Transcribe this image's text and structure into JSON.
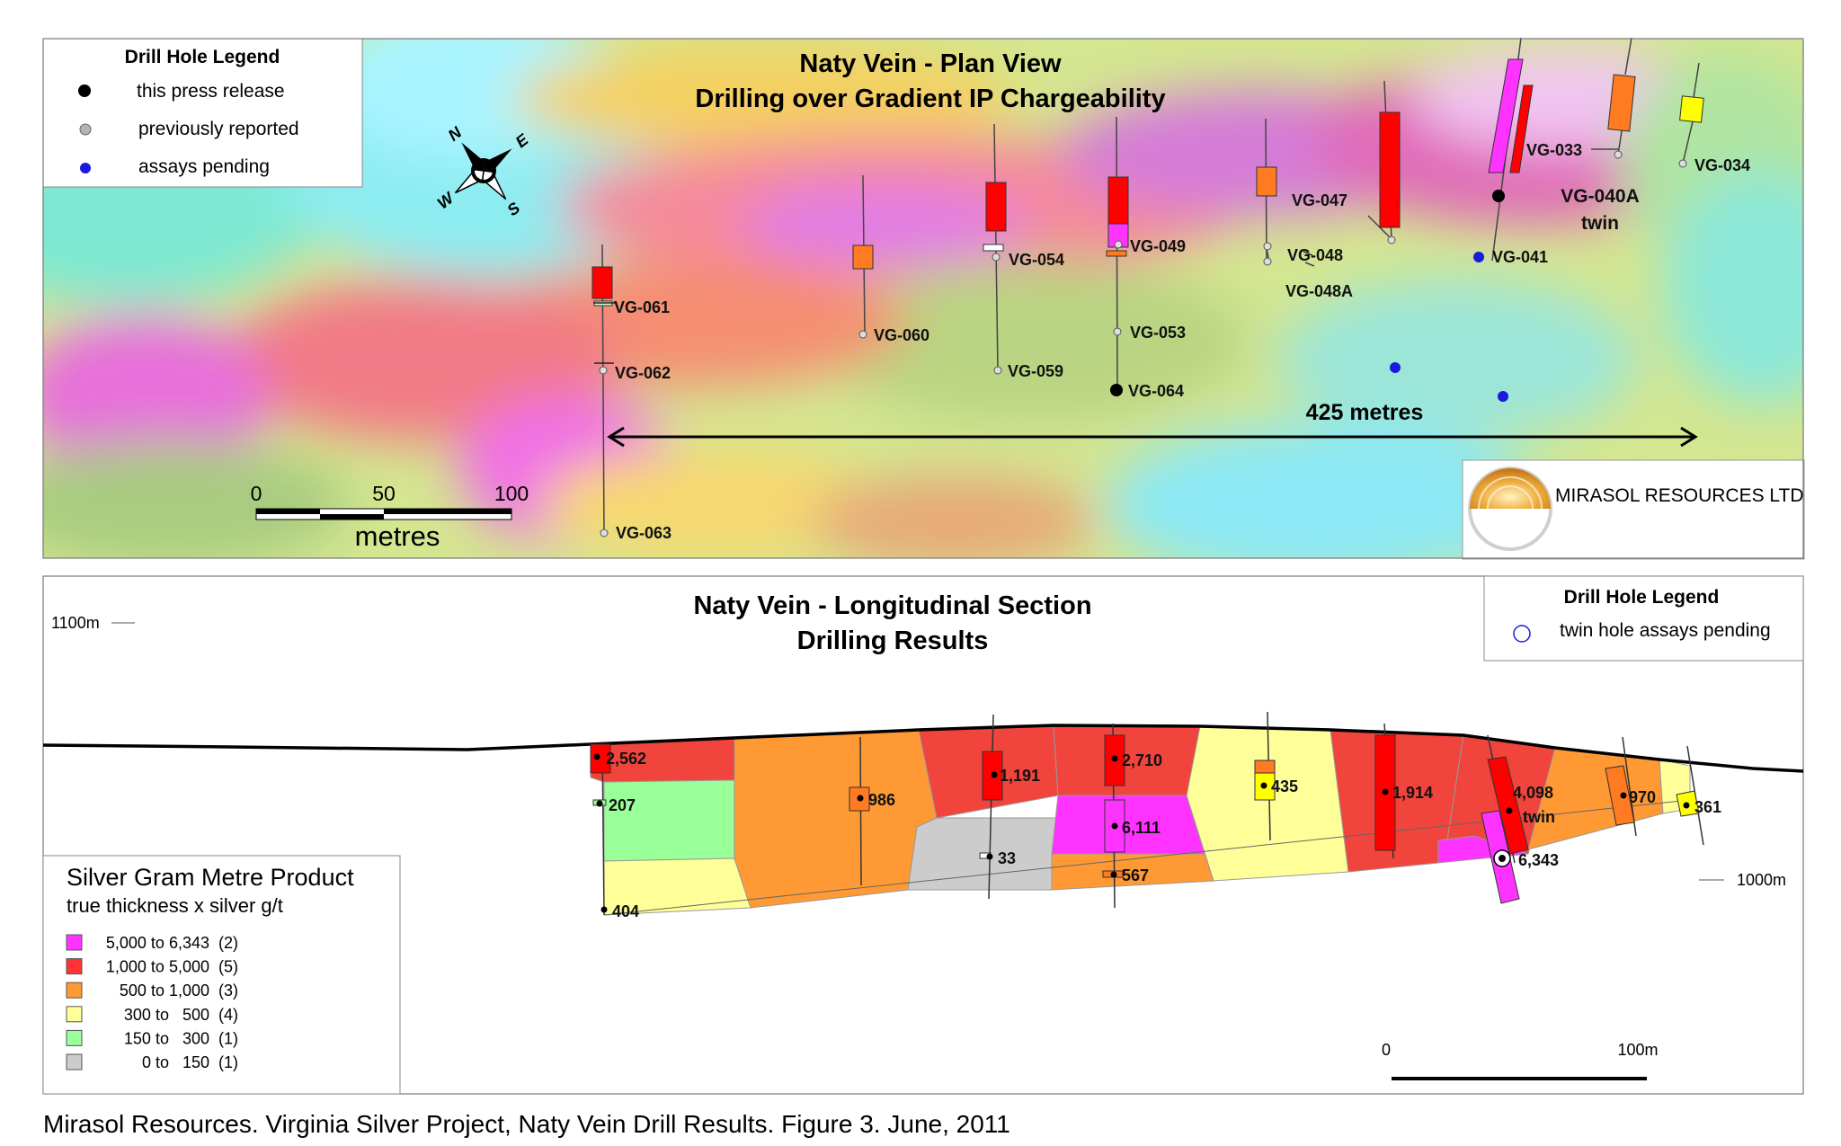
{
  "plan": {
    "title_line1": "Naty Vein - Plan View",
    "title_line2": "Drilling over Gradient IP Chargeability",
    "legend": {
      "title": "Drill Hole Legend",
      "items": [
        {
          "label": "this press release",
          "color": "#000000"
        },
        {
          "label": "previously reported",
          "color": "#b4b4b4"
        },
        {
          "label": "assays pending",
          "color": "#1a1adc"
        }
      ]
    },
    "compass": {
      "n": "N",
      "e": "E",
      "s": "S",
      "w": "W"
    },
    "scale": {
      "t0": "0",
      "t50": "50",
      "t100": "100",
      "unit": "metres"
    },
    "distance_label": "425 metres",
    "company": "MIRASOL RESOURCES LTD",
    "holes": [
      {
        "id": "VG-061"
      },
      {
        "id": "VG-062"
      },
      {
        "id": "VG-063"
      },
      {
        "id": "VG-060"
      },
      {
        "id": "VG-054"
      },
      {
        "id": "VG-059"
      },
      {
        "id": "VG-049"
      },
      {
        "id": "VG-053"
      },
      {
        "id": "VG-064"
      },
      {
        "id": "VG-048"
      },
      {
        "id": "VG-048A"
      },
      {
        "id": "VG-047"
      },
      {
        "id": "VG-041"
      },
      {
        "id": "VG-033"
      },
      {
        "id": "VG-034"
      },
      {
        "id": "VG-040A"
      },
      {
        "id": "twin"
      }
    ]
  },
  "section": {
    "title_line1": "Naty Vein - Longitudinal Section",
    "title_line2": "Drilling Results",
    "elev_top": "1100m",
    "elev_bottom": "1000m",
    "legend": {
      "title": "Drill Hole Legend",
      "item": "twin hole assays pending"
    },
    "scale": {
      "t0": "0",
      "t100": "100m"
    },
    "grade_legend": {
      "title": "Silver Gram Metre Product",
      "subtitle": "true thickness x silver g/t",
      "items": [
        {
          "label": "5,000 to 6,343  (2)",
          "color": "#ff33ff"
        },
        {
          "label": "1,000 to 5,000  (5)",
          "color": "#ff3333"
        },
        {
          "label": "500 to 1,000  (3)",
          "color": "#ff9933"
        },
        {
          "label": "300 to   500  (4)",
          "color": "#ffff99"
        },
        {
          "label": "150 to   300  (1)",
          "color": "#99ff99"
        },
        {
          "label": "0 to   150  (1)",
          "color": "#cccccc"
        }
      ]
    },
    "values": [
      {
        "v": "2,562"
      },
      {
        "v": "207"
      },
      {
        "v": "404"
      },
      {
        "v": "986"
      },
      {
        "v": "1,191"
      },
      {
        "v": "33"
      },
      {
        "v": "2,710"
      },
      {
        "v": "6,111"
      },
      {
        "v": "567"
      },
      {
        "v": "435"
      },
      {
        "v": "1,914"
      },
      {
        "v": "4,098"
      },
      {
        "v": "twin"
      },
      {
        "v": "6,343"
      },
      {
        "v": "970"
      },
      {
        "v": "361"
      }
    ]
  },
  "caption": "Mirasol Resources. Virginia Silver Project, Naty Vein Drill Results. Figure 3. June, 2011"
}
